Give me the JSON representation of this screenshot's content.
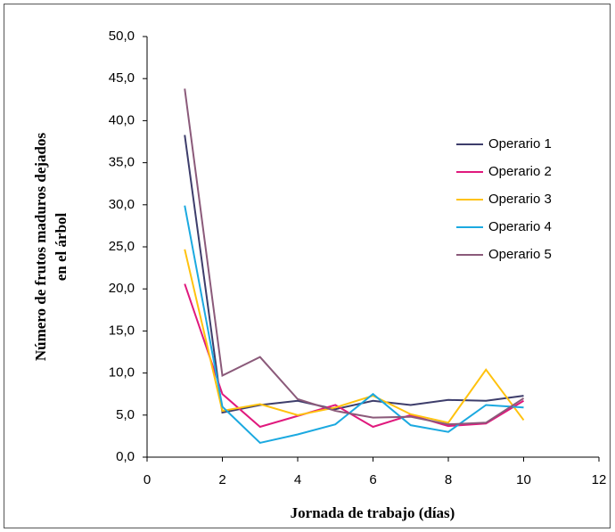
{
  "chart_data": {
    "type": "line",
    "xlabel": "Jornada de trabajo (días)",
    "ylabel": [
      "Número de frutos maduros dejados",
      "en el árbol"
    ],
    "x": [
      1,
      2,
      3,
      4,
      5,
      6,
      7,
      8,
      9,
      10
    ],
    "series": [
      {
        "name": "Operario 1",
        "color": "#3d3d6b",
        "values": [
          38.3,
          5.3,
          6.2,
          6.7,
          5.7,
          6.7,
          6.2,
          6.8,
          6.7,
          7.3
        ]
      },
      {
        "name": "Operario 2",
        "color": "#e0197d",
        "values": [
          20.6,
          7.5,
          3.6,
          4.9,
          6.2,
          3.6,
          5.0,
          3.7,
          4.0,
          6.7
        ]
      },
      {
        "name": "Operario 3",
        "color": "#ffc20e",
        "values": [
          24.7,
          5.5,
          6.3,
          5.0,
          5.9,
          7.3,
          5.1,
          4.1,
          10.4,
          4.4
        ]
      },
      {
        "name": "Operario 4",
        "color": "#1ba9e0",
        "values": [
          29.9,
          6.0,
          1.7,
          2.7,
          3.9,
          7.5,
          3.8,
          3.0,
          6.2,
          5.9
        ]
      },
      {
        "name": "Operario 5",
        "color": "#8b5a7a",
        "values": [
          43.8,
          9.7,
          11.9,
          6.9,
          5.5,
          4.7,
          4.8,
          3.9,
          4.1,
          7.0
        ]
      }
    ],
    "xlim": [
      0,
      12
    ],
    "xticks": [
      0,
      2,
      4,
      6,
      8,
      10,
      12
    ],
    "ylim": [
      0,
      50
    ],
    "yticks": [
      {
        "value": 0,
        "label": "0,0"
      },
      {
        "value": 5,
        "label": "5,0"
      },
      {
        "value": 10,
        "label": "10,0"
      },
      {
        "value": 15,
        "label": "15,0"
      },
      {
        "value": 20,
        "label": "20,0"
      },
      {
        "value": 25,
        "label": "25,0"
      },
      {
        "value": 30,
        "label": "30,0"
      },
      {
        "value": 35,
        "label": "35,0"
      },
      {
        "value": 40,
        "label": "40,0"
      },
      {
        "value": 45,
        "label": "45,0"
      },
      {
        "value": 50,
        "label": "50,0"
      }
    ],
    "grid": false,
    "legend": "right"
  }
}
